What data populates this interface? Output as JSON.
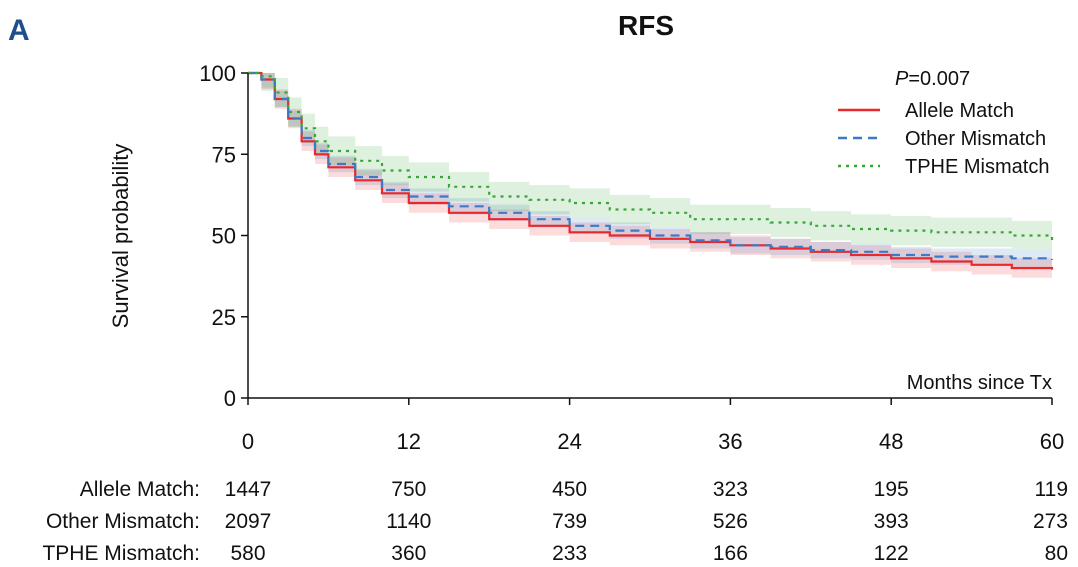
{
  "panel_letter": "A",
  "chart_data": {
    "type": "line",
    "title": "RFS",
    "xlabel": "Months since Tx",
    "ylabel": "Survival probability",
    "xlim": [
      0,
      60
    ],
    "ylim": [
      0,
      100
    ],
    "x_ticks": [
      0,
      12,
      24,
      36,
      48,
      60
    ],
    "y_ticks": [
      0,
      25,
      50,
      75,
      100
    ],
    "pvalue_prefix": "P",
    "pvalue_rest": "=0.007",
    "legend_position": "top-right",
    "series": [
      {
        "name": "Allele Match",
        "color": "#e8282b",
        "style": "solid",
        "band_half_width": 3,
        "x": [
          0,
          1,
          2,
          3,
          4,
          5,
          6,
          8,
          10,
          12,
          15,
          18,
          21,
          24,
          27,
          30,
          33,
          36,
          39,
          42,
          45,
          48,
          51,
          54,
          57,
          60
        ],
        "y": [
          100,
          98,
          92,
          86,
          79,
          75,
          71,
          67,
          63,
          60,
          57,
          55,
          53,
          51,
          50,
          49,
          48,
          47,
          46,
          45,
          44,
          43,
          42,
          41,
          40,
          39.5
        ]
      },
      {
        "name": "Other Mismatch",
        "color": "#3a7ac8",
        "style": "dashed",
        "band_half_width": 2.5,
        "x": [
          0,
          1,
          2,
          3,
          4,
          5,
          6,
          8,
          10,
          12,
          15,
          18,
          21,
          24,
          27,
          30,
          33,
          36,
          39,
          42,
          45,
          48,
          51,
          54,
          57,
          60
        ],
        "y": [
          100,
          98,
          92,
          86,
          80,
          76,
          72,
          68,
          64,
          62,
          59,
          57,
          55,
          53,
          51.5,
          50,
          48.5,
          47,
          46.5,
          45.5,
          45,
          44,
          43.5,
          43.5,
          43,
          42.5
        ]
      },
      {
        "name": "TPHE Mismatch",
        "color": "#3aa63a",
        "style": "dotted",
        "band_half_width": 4.5,
        "x": [
          0,
          1,
          2,
          3,
          4,
          5,
          6,
          8,
          10,
          12,
          15,
          18,
          21,
          24,
          27,
          30,
          33,
          36,
          39,
          42,
          45,
          48,
          51,
          54,
          57,
          60
        ],
        "y": [
          100,
          99,
          94,
          88,
          83,
          79,
          76,
          73,
          70,
          68,
          65,
          62,
          61,
          60,
          58,
          57,
          55,
          55,
          54,
          53,
          52,
          51.5,
          51,
          51,
          50,
          48.5
        ]
      }
    ],
    "risk_table": {
      "rows": [
        {
          "label": "Allele Match:",
          "values": [
            "1447",
            "750",
            "450",
            "323",
            "195",
            "119"
          ]
        },
        {
          "label": "Other Mismatch:",
          "values": [
            "2097",
            "1140",
            "739",
            "526",
            "393",
            "273"
          ]
        },
        {
          "label": "TPHE Mismatch:",
          "values": [
            "580",
            "360",
            "233",
            "166",
            "122",
            "80"
          ]
        }
      ]
    }
  }
}
